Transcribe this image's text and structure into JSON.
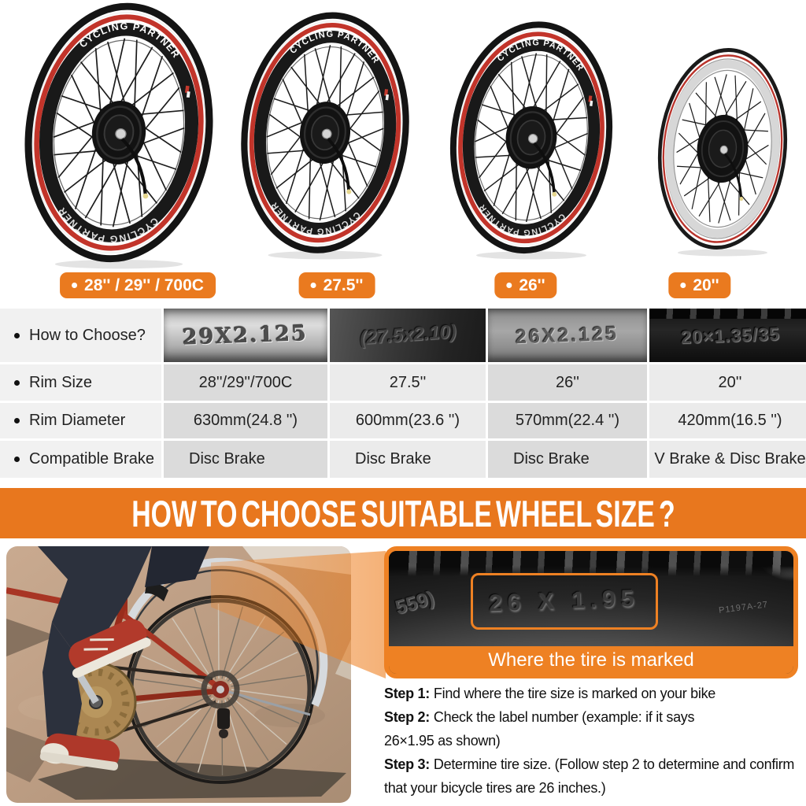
{
  "accent": {
    "orange": "#EA7A1F",
    "banner_orange": "#E8771E",
    "red_stripe": "#C2342A"
  },
  "wheels": {
    "rim_brand": "CYCLING PARTNER",
    "sizes": [
      "28'' / 29'' / 700C",
      "27.5''",
      "26''",
      "20''"
    ]
  },
  "table": {
    "row_labels": [
      "How to Choose?",
      "Rim Size",
      "Rim Diameter",
      "Compatible Brake"
    ],
    "tire_marks": [
      "29X2.125",
      "(27.5x2.10)",
      "26X2.125",
      "20×1.35/35"
    ],
    "rim_size": [
      "28''/29''/700C",
      "27.5''",
      "26''",
      "20''"
    ],
    "rim_diameter": [
      "630mm(24.8 '')",
      "600mm(23.6 '')",
      "570mm(22.4 '')",
      "420mm(16.5 '')"
    ],
    "compatible_brake": [
      "Disc Brake",
      "Disc Brake",
      "Disc Brake",
      "V Brake & Disc Brake"
    ]
  },
  "banner": {
    "title": "HOW TO CHOOSE SUITABLE WHEEL SIZE ?"
  },
  "closeup": {
    "left_mark": "559)",
    "size_mark": "26 X 1.95",
    "code_mark": "P1197A-27",
    "caption": "Where the tire is marked"
  },
  "steps": [
    {
      "label": "Step 1:",
      "text": "Find where the tire size is marked on your bike"
    },
    {
      "label": "Step 2:",
      "text": "Check the label number (example: if it says\n26×1.95 as shown)"
    },
    {
      "label": "Step 3:",
      "text": "Determine tire size. (Follow step 2 to determine and confirm\nthat your bicycle tires are 26 inches.)"
    }
  ]
}
